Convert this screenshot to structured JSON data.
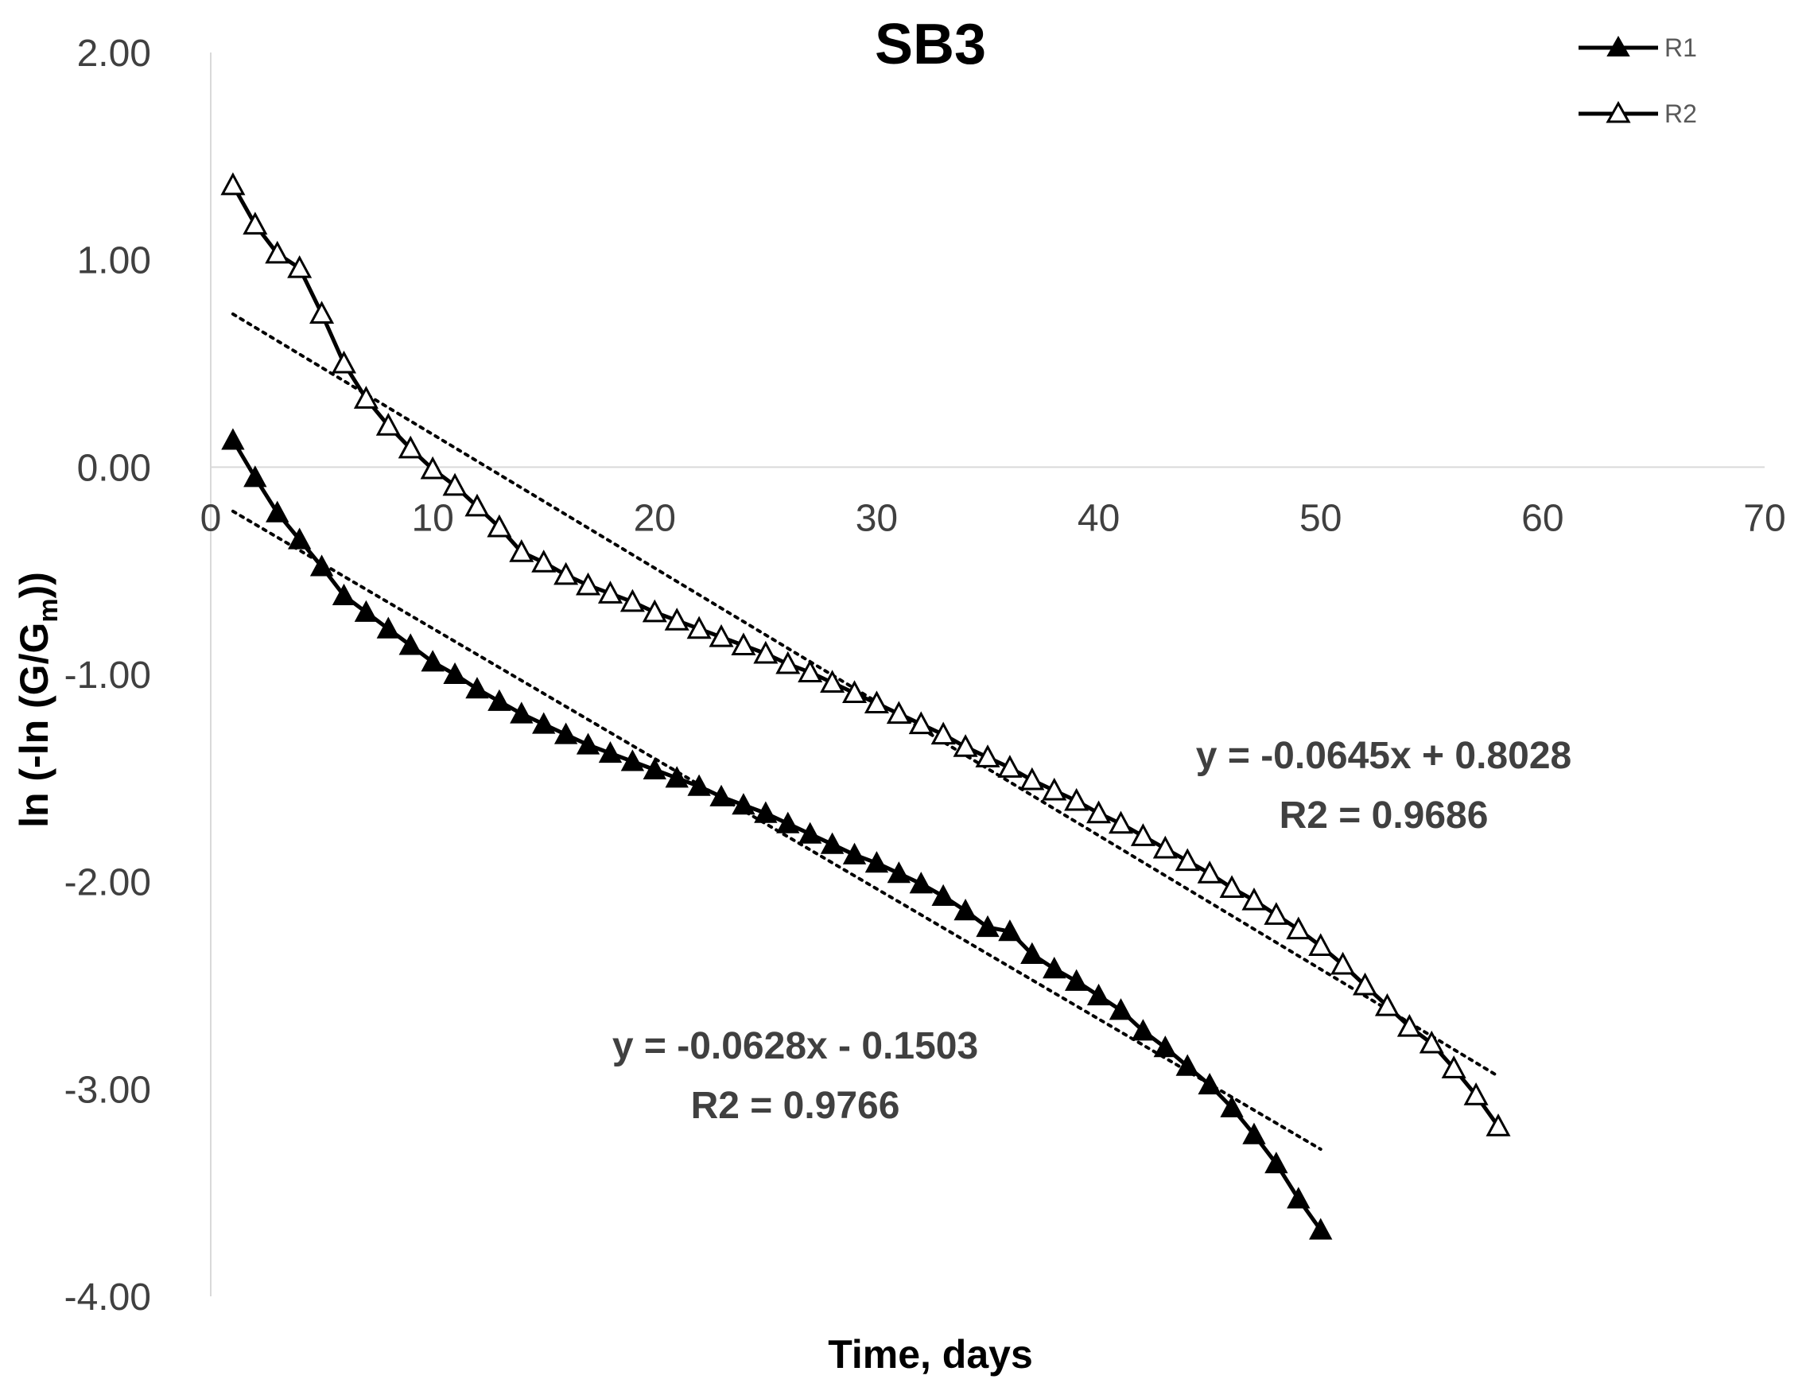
{
  "chart_data": {
    "type": "line",
    "title": "SB3",
    "xlabel": "Time, days",
    "ylabel_parts": {
      "a": "ln (-ln (G",
      "b": "/G",
      "c": "m",
      "d": "))"
    },
    "xlim": [
      0,
      70
    ],
    "ylim": [
      -4,
      2
    ],
    "x_ticks": [
      "0",
      "10",
      "20",
      "30",
      "40",
      "50",
      "60",
      "70"
    ],
    "y_ticks": [
      "2.00",
      "1.00",
      "0.00",
      "-1.00",
      "-2.00",
      "-3.00",
      "-4.00"
    ],
    "legend_position": "top-right",
    "series": [
      {
        "name": "R1",
        "marker": "filled-triangle",
        "x": [
          1,
          2,
          3,
          4,
          5,
          6,
          7,
          8,
          9,
          10,
          11,
          12,
          13,
          14,
          15,
          16,
          17,
          18,
          19,
          20,
          21,
          22,
          23,
          24,
          25,
          26,
          27,
          28,
          29,
          30,
          31,
          32,
          33,
          34,
          35,
          36,
          37,
          38,
          39,
          40,
          41,
          42,
          43,
          44,
          45,
          46,
          47,
          48,
          49,
          50
        ],
        "values": [
          0.13,
          -0.05,
          -0.22,
          -0.35,
          -0.48,
          -0.62,
          -0.7,
          -0.78,
          -0.86,
          -0.94,
          -1.0,
          -1.07,
          -1.13,
          -1.19,
          -1.24,
          -1.29,
          -1.34,
          -1.38,
          -1.42,
          -1.46,
          -1.5,
          -1.54,
          -1.59,
          -1.63,
          -1.67,
          -1.72,
          -1.77,
          -1.82,
          -1.87,
          -1.91,
          -1.96,
          -2.01,
          -2.07,
          -2.14,
          -2.22,
          -2.24,
          -2.35,
          -2.42,
          -2.48,
          -2.55,
          -2.62,
          -2.72,
          -2.8,
          -2.89,
          -2.98,
          -3.09,
          -3.22,
          -3.36,
          -3.53,
          -3.68
        ]
      },
      {
        "name": "R2",
        "marker": "open-triangle",
        "x": [
          1,
          2,
          3,
          4,
          5,
          6,
          7,
          8,
          9,
          10,
          11,
          12,
          13,
          14,
          15,
          16,
          17,
          18,
          19,
          20,
          21,
          22,
          23,
          24,
          25,
          26,
          27,
          28,
          29,
          30,
          31,
          32,
          33,
          34,
          35,
          36,
          37,
          38,
          39,
          40,
          41,
          42,
          43,
          44,
          45,
          46,
          47,
          48,
          49,
          50,
          51,
          52,
          53,
          54,
          55,
          56,
          57,
          58
        ],
        "values": [
          1.36,
          1.17,
          1.03,
          0.96,
          0.74,
          0.5,
          0.33,
          0.2,
          0.09,
          -0.01,
          -0.09,
          -0.19,
          -0.29,
          -0.41,
          -0.46,
          -0.52,
          -0.57,
          -0.61,
          -0.65,
          -0.7,
          -0.74,
          -0.78,
          -0.82,
          -0.86,
          -0.9,
          -0.95,
          -0.99,
          -1.04,
          -1.09,
          -1.14,
          -1.19,
          -1.24,
          -1.29,
          -1.35,
          -1.4,
          -1.45,
          -1.51,
          -1.56,
          -1.61,
          -1.67,
          -1.72,
          -1.78,
          -1.84,
          -1.9,
          -1.96,
          -2.03,
          -2.09,
          -2.16,
          -2.23,
          -2.31,
          -2.4,
          -2.5,
          -2.6,
          -2.7,
          -2.78,
          -2.9,
          -3.03,
          -3.18
        ]
      }
    ],
    "trendlines": [
      {
        "series": "R1",
        "slope": -0.0628,
        "intercept": -0.1503,
        "x_range": [
          1,
          50
        ],
        "equation": "y = -0.0628x - 0.1503",
        "r2_label": "R2 = 0.9766"
      },
      {
        "series": "R2",
        "slope": -0.0645,
        "intercept": 0.8028,
        "x_range": [
          1,
          58
        ],
        "equation": "y = -0.0645x + 0.8028",
        "r2_label": "R2 = 0.9686"
      }
    ]
  }
}
